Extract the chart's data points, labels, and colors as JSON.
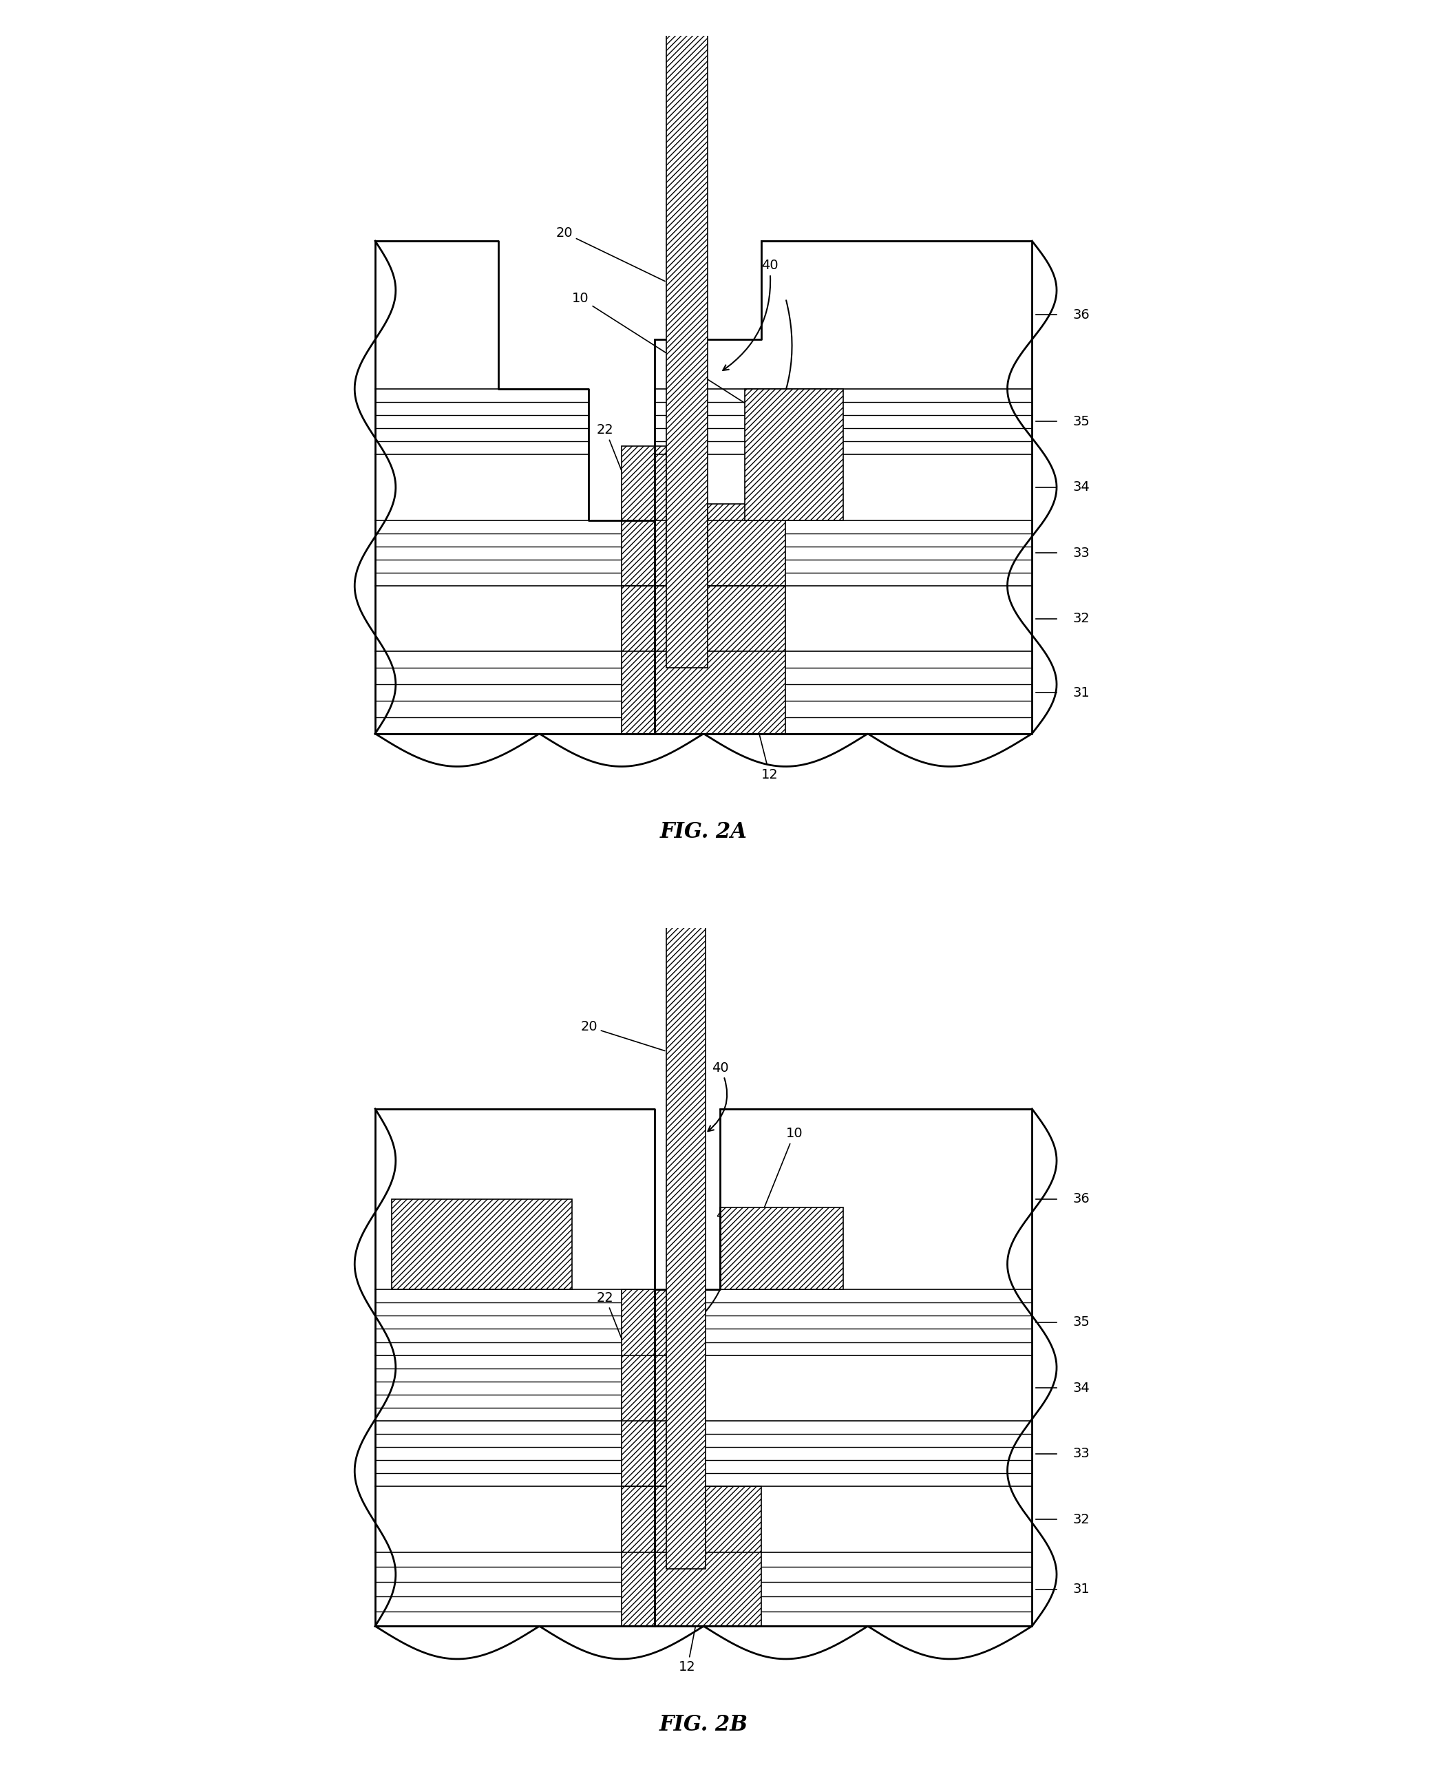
{
  "fig_title_a": "FIG. 2A",
  "fig_title_b": "FIG. 2B",
  "bg_color": "#ffffff",
  "line_color": "#000000",
  "label_fontsize": 14,
  "title_fontsize": 22
}
